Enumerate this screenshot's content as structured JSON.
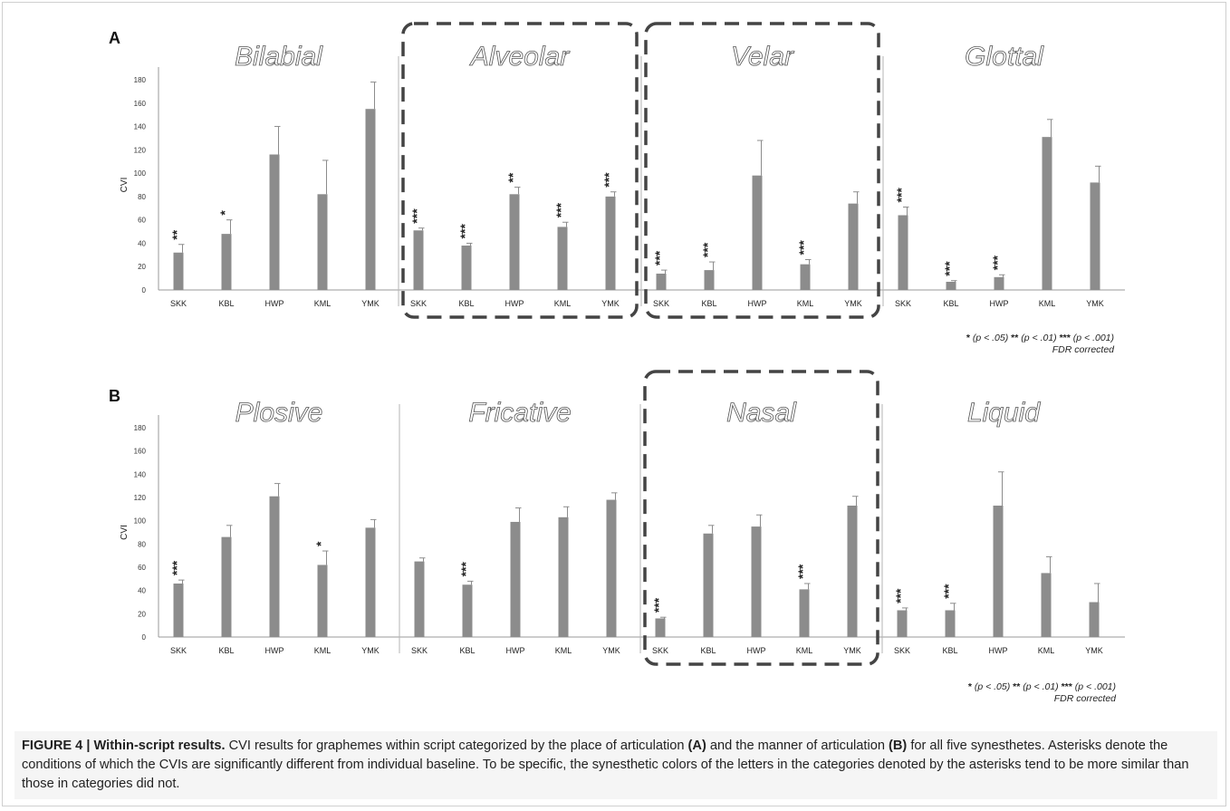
{
  "figure": {
    "caption": {
      "label": "FIGURE 4 | Within-script results.",
      "text_1": " CVI results for graphemes within script categorized by the place of articulation ",
      "bold_a": "(A)",
      "text_2": " and the manner of articulation ",
      "bold_b": "(B)",
      "text_3": " for all five synesthetes. Asterisks denote the conditions of which the CVIs are significantly different from individual baseline. To be specific, the synesthetic colors of the letters in the categories denoted by the asterisks tend to be more similar than those in categories did not."
    },
    "significance_note": {
      "s1": "*",
      "t1": " (p < .05) ",
      "s2": "**",
      "t2": " (p < .01) ",
      "s3": "***",
      "t3": " (p < .001)",
      "line2": "FDR corrected"
    }
  },
  "chart_data": [
    {
      "type": "bar",
      "panel": "A",
      "ylabel": "CVI",
      "ylim": [
        0,
        180
      ],
      "yticks": [
        0,
        20,
        40,
        60,
        80,
        100,
        120,
        140,
        160,
        180
      ],
      "bar_color": "#8c8c8c",
      "groups": [
        {
          "name": "Bilabial",
          "boxed": false,
          "categories": [
            "SKK",
            "KBL",
            "HWP",
            "KML",
            "YMK"
          ],
          "values": [
            32,
            48,
            116,
            82,
            155
          ],
          "errors": [
            7,
            12,
            24,
            29,
            23
          ],
          "stars": [
            "**",
            "*",
            "",
            "",
            ""
          ]
        },
        {
          "name": "Alveolar",
          "boxed": true,
          "categories": [
            "SKK",
            "KBL",
            "HWP",
            "KML",
            "YMK"
          ],
          "values": [
            51,
            38,
            82,
            54,
            80
          ],
          "errors": [
            2,
            2,
            6,
            4,
            4
          ],
          "stars": [
            "***",
            "***",
            "**",
            "***",
            "***"
          ]
        },
        {
          "name": "Velar",
          "boxed": true,
          "categories": [
            "SKK",
            "KBL",
            "HWP",
            "KML",
            "YMK"
          ],
          "values": [
            14,
            17,
            98,
            22,
            74
          ],
          "errors": [
            3,
            7,
            30,
            4,
            10
          ],
          "stars": [
            "***",
            "***",
            "",
            "***",
            ""
          ]
        },
        {
          "name": "Glottal",
          "boxed": false,
          "categories": [
            "SKK",
            "KBL",
            "HWP",
            "KML",
            "YMK"
          ],
          "values": [
            64,
            7,
            11,
            131,
            92
          ],
          "errors": [
            7,
            1,
            2,
            15,
            14
          ],
          "stars": [
            "***",
            "***",
            "***",
            "",
            ""
          ]
        }
      ]
    },
    {
      "type": "bar",
      "panel": "B",
      "ylabel": "CVI",
      "ylim": [
        0,
        180
      ],
      "yticks": [
        0,
        20,
        40,
        60,
        80,
        100,
        120,
        140,
        160,
        180
      ],
      "bar_color": "#8c8c8c",
      "groups": [
        {
          "name": "Plosive",
          "boxed": false,
          "categories": [
            "SKK",
            "KBL",
            "HWP",
            "KML",
            "YMK"
          ],
          "values": [
            46,
            86,
            121,
            62,
            94
          ],
          "errors": [
            3,
            10,
            11,
            12,
            7
          ],
          "stars": [
            "***",
            "",
            "",
            "*",
            ""
          ]
        },
        {
          "name": "Fricative",
          "boxed": false,
          "categories": [
            "SKK",
            "KBL",
            "HWP",
            "KML",
            "YMK"
          ],
          "values": [
            65,
            45,
            99,
            103,
            118
          ],
          "errors": [
            3,
            3,
            12,
            9,
            6
          ],
          "stars": [
            "",
            "***",
            "",
            "",
            ""
          ]
        },
        {
          "name": "Nasal",
          "boxed": true,
          "categories": [
            "SKK",
            "KBL",
            "HWP",
            "KML",
            "YMK"
          ],
          "values": [
            16,
            89,
            95,
            41,
            113
          ],
          "errors": [
            1,
            7,
            10,
            5,
            8
          ],
          "stars": [
            "***",
            "",
            "",
            "***",
            ""
          ]
        },
        {
          "name": "Liquid",
          "boxed": false,
          "categories": [
            "SKK",
            "KBL",
            "HWP",
            "KML",
            "YMK"
          ],
          "values": [
            23,
            23,
            113,
            55,
            30
          ],
          "errors": [
            2,
            6,
            29,
            14,
            16
          ],
          "stars": [
            "***",
            "***",
            "",
            "",
            ""
          ]
        }
      ]
    }
  ]
}
